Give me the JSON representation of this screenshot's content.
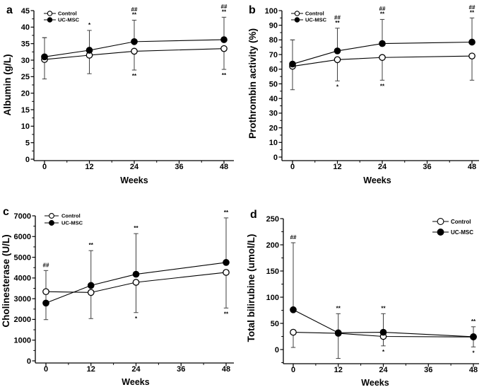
{
  "figure": {
    "description_labels": {
      "control_label": "Control",
      "ucmsc_label": "UC-MSC",
      "weeks_label": "Weeks"
    },
    "colors": {
      "ink": "#000000",
      "error_bar": "#3f3f3f",
      "background": "#ffffff",
      "open_marker_fill": "#ffffff"
    }
  },
  "chart_data": [
    {
      "panel_label": "a",
      "type": "line",
      "title": "",
      "xlabel": "Weeks",
      "ylabel": "Albumin (g/L)",
      "x": [
        0,
        12,
        24,
        48
      ],
      "xticks": [
        0,
        12,
        24,
        36,
        48
      ],
      "xminor": [
        6,
        18,
        30,
        42
      ],
      "ylim": [
        0,
        45
      ],
      "yticks": [
        0,
        5,
        10,
        15,
        20,
        25,
        30,
        35,
        40,
        45
      ],
      "grid": false,
      "legend_position": "top-left",
      "series": [
        {
          "name": "Control",
          "marker": "open",
          "values": [
            30.2,
            31.5,
            32.7,
            33.5
          ],
          "err_up": [
            6.6,
            0,
            0,
            0
          ],
          "err_down": [
            5.9,
            5.6,
            5.7,
            6.3
          ]
        },
        {
          "name": "UC-MSC",
          "marker": "filled",
          "values": [
            31.0,
            33.0,
            35.6,
            36.2
          ],
          "err_up": [
            5.8,
            6.0,
            6.5,
            6.8
          ],
          "err_down": [
            0,
            0,
            0,
            0
          ]
        }
      ],
      "annotations": [
        {
          "week": 12,
          "position": "above",
          "lines": [
            "*"
          ]
        },
        {
          "week": 24,
          "position": "above",
          "lines": [
            "##",
            "**"
          ]
        },
        {
          "week": 24,
          "position": "below",
          "lines": [
            "**"
          ]
        },
        {
          "week": 48,
          "position": "above",
          "lines": [
            "##",
            "**"
          ]
        },
        {
          "week": 48,
          "position": "below",
          "lines": [
            "**"
          ]
        }
      ]
    },
    {
      "panel_label": "b",
      "type": "line",
      "title": "",
      "xlabel": "Weeks",
      "ylabel": "Prothrombin activity (%)",
      "x": [
        0,
        12,
        24,
        48
      ],
      "xticks": [
        0,
        12,
        24,
        36,
        48
      ],
      "xminor": [
        6,
        18,
        30,
        42
      ],
      "ylim": [
        0,
        100
      ],
      "yticks": [
        0,
        10,
        20,
        30,
        40,
        50,
        60,
        70,
        80,
        90,
        100
      ],
      "grid": false,
      "legend_position": "top-left",
      "series": [
        {
          "name": "Control",
          "marker": "open",
          "values": [
            62,
            66.5,
            68,
            69
          ],
          "err_up": [
            18,
            0,
            0,
            0
          ],
          "err_down": [
            16,
            14.5,
            15.5,
            16.5
          ]
        },
        {
          "name": "UC-MSC",
          "marker": "filled",
          "values": [
            63.5,
            72.5,
            77.5,
            78.5
          ],
          "err_up": [
            16.5,
            15.5,
            16.5,
            16.5
          ],
          "err_down": [
            0,
            0,
            0,
            0
          ]
        }
      ],
      "annotations": [
        {
          "week": 12,
          "position": "above",
          "lines": [
            "##",
            "**"
          ]
        },
        {
          "week": 12,
          "position": "below",
          "lines": [
            "*"
          ]
        },
        {
          "week": 24,
          "position": "above",
          "lines": [
            "##",
            "**"
          ]
        },
        {
          "week": 24,
          "position": "below",
          "lines": [
            "**"
          ]
        },
        {
          "week": 48,
          "position": "above",
          "lines": [
            "##",
            "**"
          ]
        }
      ]
    },
    {
      "panel_label": "c",
      "type": "line",
      "title": "",
      "xlabel": "Weeks",
      "ylabel": "Cholinesterase (U/L)",
      "x": [
        0,
        12,
        24,
        48
      ],
      "xticks": [
        0,
        12,
        24,
        36,
        48
      ],
      "xminor": [
        6,
        18,
        30,
        42
      ],
      "ylim": [
        0,
        7000
      ],
      "yticks": [
        0,
        1000,
        2000,
        3000,
        4000,
        5000,
        6000,
        7000
      ],
      "grid": false,
      "legend_position": "top-left",
      "series": [
        {
          "name": "Control",
          "marker": "open",
          "values": [
            3340,
            3300,
            3790,
            4270
          ],
          "err_up": [
            1020,
            0,
            0,
            0
          ],
          "err_down": [
            1350,
            1260,
            1460,
            1720
          ]
        },
        {
          "name": "UC-MSC",
          "marker": "filled",
          "values": [
            2790,
            3640,
            4180,
            4750
          ],
          "err_up": [
            0,
            1680,
            1960,
            2150
          ],
          "err_down": [
            0,
            0,
            0,
            0
          ]
        }
      ],
      "annotations": [
        {
          "week": 0,
          "position": "above",
          "lines": [
            "##"
          ]
        },
        {
          "week": 12,
          "position": "above",
          "lines": [
            "**"
          ]
        },
        {
          "week": 24,
          "position": "above",
          "lines": [
            "**"
          ]
        },
        {
          "week": 24,
          "position": "below",
          "lines": [
            "*"
          ]
        },
        {
          "week": 48,
          "position": "above",
          "lines": [
            "**"
          ]
        },
        {
          "week": 48,
          "position": "below",
          "lines": [
            "**"
          ]
        }
      ]
    },
    {
      "panel_label": "d",
      "type": "line",
      "title": "",
      "xlabel": "Weeks",
      "ylabel": "Total bilirubine (umol/L)",
      "x": [
        0,
        12,
        24,
        48
      ],
      "xticks": [
        0,
        12,
        24,
        36,
        48
      ],
      "xminor": [
        6,
        18,
        30,
        42
      ],
      "ylim": [
        0,
        250
      ],
      "yticks": [
        0,
        50,
        100,
        150,
        200,
        250
      ],
      "yminor_extra": [
        -25
      ],
      "grid": false,
      "legend_position": "top-right",
      "series": [
        {
          "name": "Control",
          "marker": "open",
          "values": [
            33,
            31,
            25,
            24
          ],
          "err_up": [
            0,
            0,
            0,
            0
          ],
          "err_down": [
            29,
            0,
            18,
            19
          ]
        },
        {
          "name": "UC-MSC",
          "marker": "filled",
          "values": [
            76,
            32,
            33,
            24.5
          ],
          "err_up": [
            128,
            36.5,
            35.5,
            19
          ],
          "err_down": [
            0,
            49,
            0,
            0
          ]
        }
      ],
      "annotations": [
        {
          "week": 0,
          "position": "above",
          "lines": [
            "##"
          ]
        },
        {
          "week": 12,
          "position": "above",
          "lines": [
            "**"
          ]
        },
        {
          "week": 24,
          "position": "above",
          "lines": [
            "**"
          ]
        },
        {
          "week": 24,
          "position": "below",
          "lines": [
            "*"
          ]
        },
        {
          "week": 48,
          "position": "above",
          "lines": [
            "**"
          ]
        },
        {
          "week": 48,
          "position": "below",
          "lines": [
            "*"
          ]
        }
      ]
    }
  ]
}
